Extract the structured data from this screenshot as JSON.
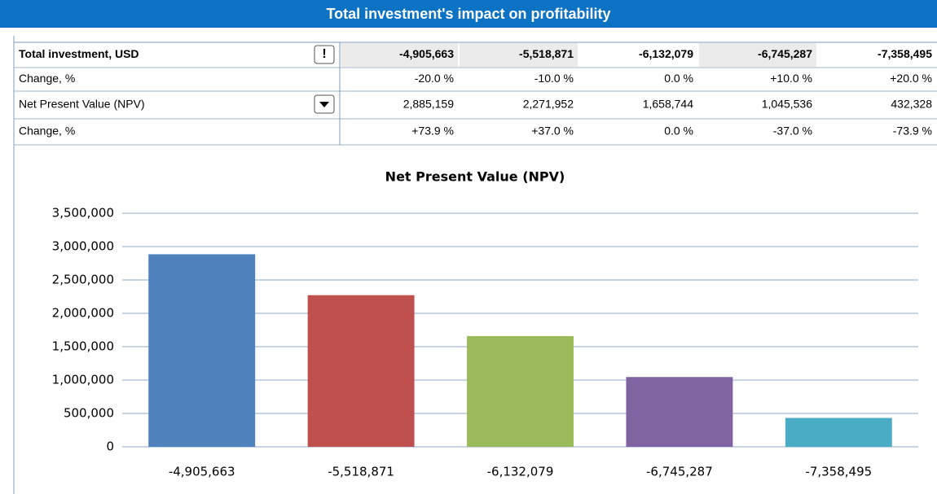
{
  "header": {
    "title": "Total investment's impact on profitability"
  },
  "table": {
    "rows": [
      [
        "Total investment, USD",
        "-4,905,663",
        "-5,518,871",
        "-6,132,079",
        "-6,745,287",
        "-7,358,495"
      ],
      [
        "Change, %",
        "-20.0 %",
        "-10.0 %",
        "0.0 %",
        "+10.0 %",
        "+20.0 %"
      ],
      [
        "Net Present Value (NPV)",
        "2,885,159",
        "2,271,952",
        "1,658,744",
        "1,045,536",
        "432,328"
      ],
      [
        "Change, %",
        "+73.9 %",
        "+37.0 %",
        "0.0 %",
        "-37.0 %",
        "-73.9 %"
      ]
    ]
  },
  "chart_data": {
    "type": "bar",
    "title": "Net Present Value (NPV)",
    "categories": [
      "-4,905,663",
      "-5,518,871",
      "-6,132,079",
      "-6,745,287",
      "-7,358,495"
    ],
    "values": [
      2885159,
      2271952,
      1658744,
      1045536,
      432328
    ],
    "colors": [
      "#4f81bd",
      "#c0504d",
      "#9bbb59",
      "#8064a2",
      "#4bacc6"
    ],
    "ylim": [
      0,
      3500000
    ],
    "yticks": [
      0,
      {
        "value": 500000,
        "label": "500,000"
      },
      {
        "value": 1000000,
        "label": "1,000,000"
      },
      {
        "value": 1500000,
        "label": "1,500,000"
      },
      {
        "value": 2000000,
        "label": "2,000,000"
      },
      {
        "value": 2500000,
        "label": "2,500,000"
      },
      {
        "value": 3000000,
        "label": "3,000,000"
      },
      {
        "value": 3500000,
        "label": "3,500,000"
      }
    ],
    "grid": true
  }
}
